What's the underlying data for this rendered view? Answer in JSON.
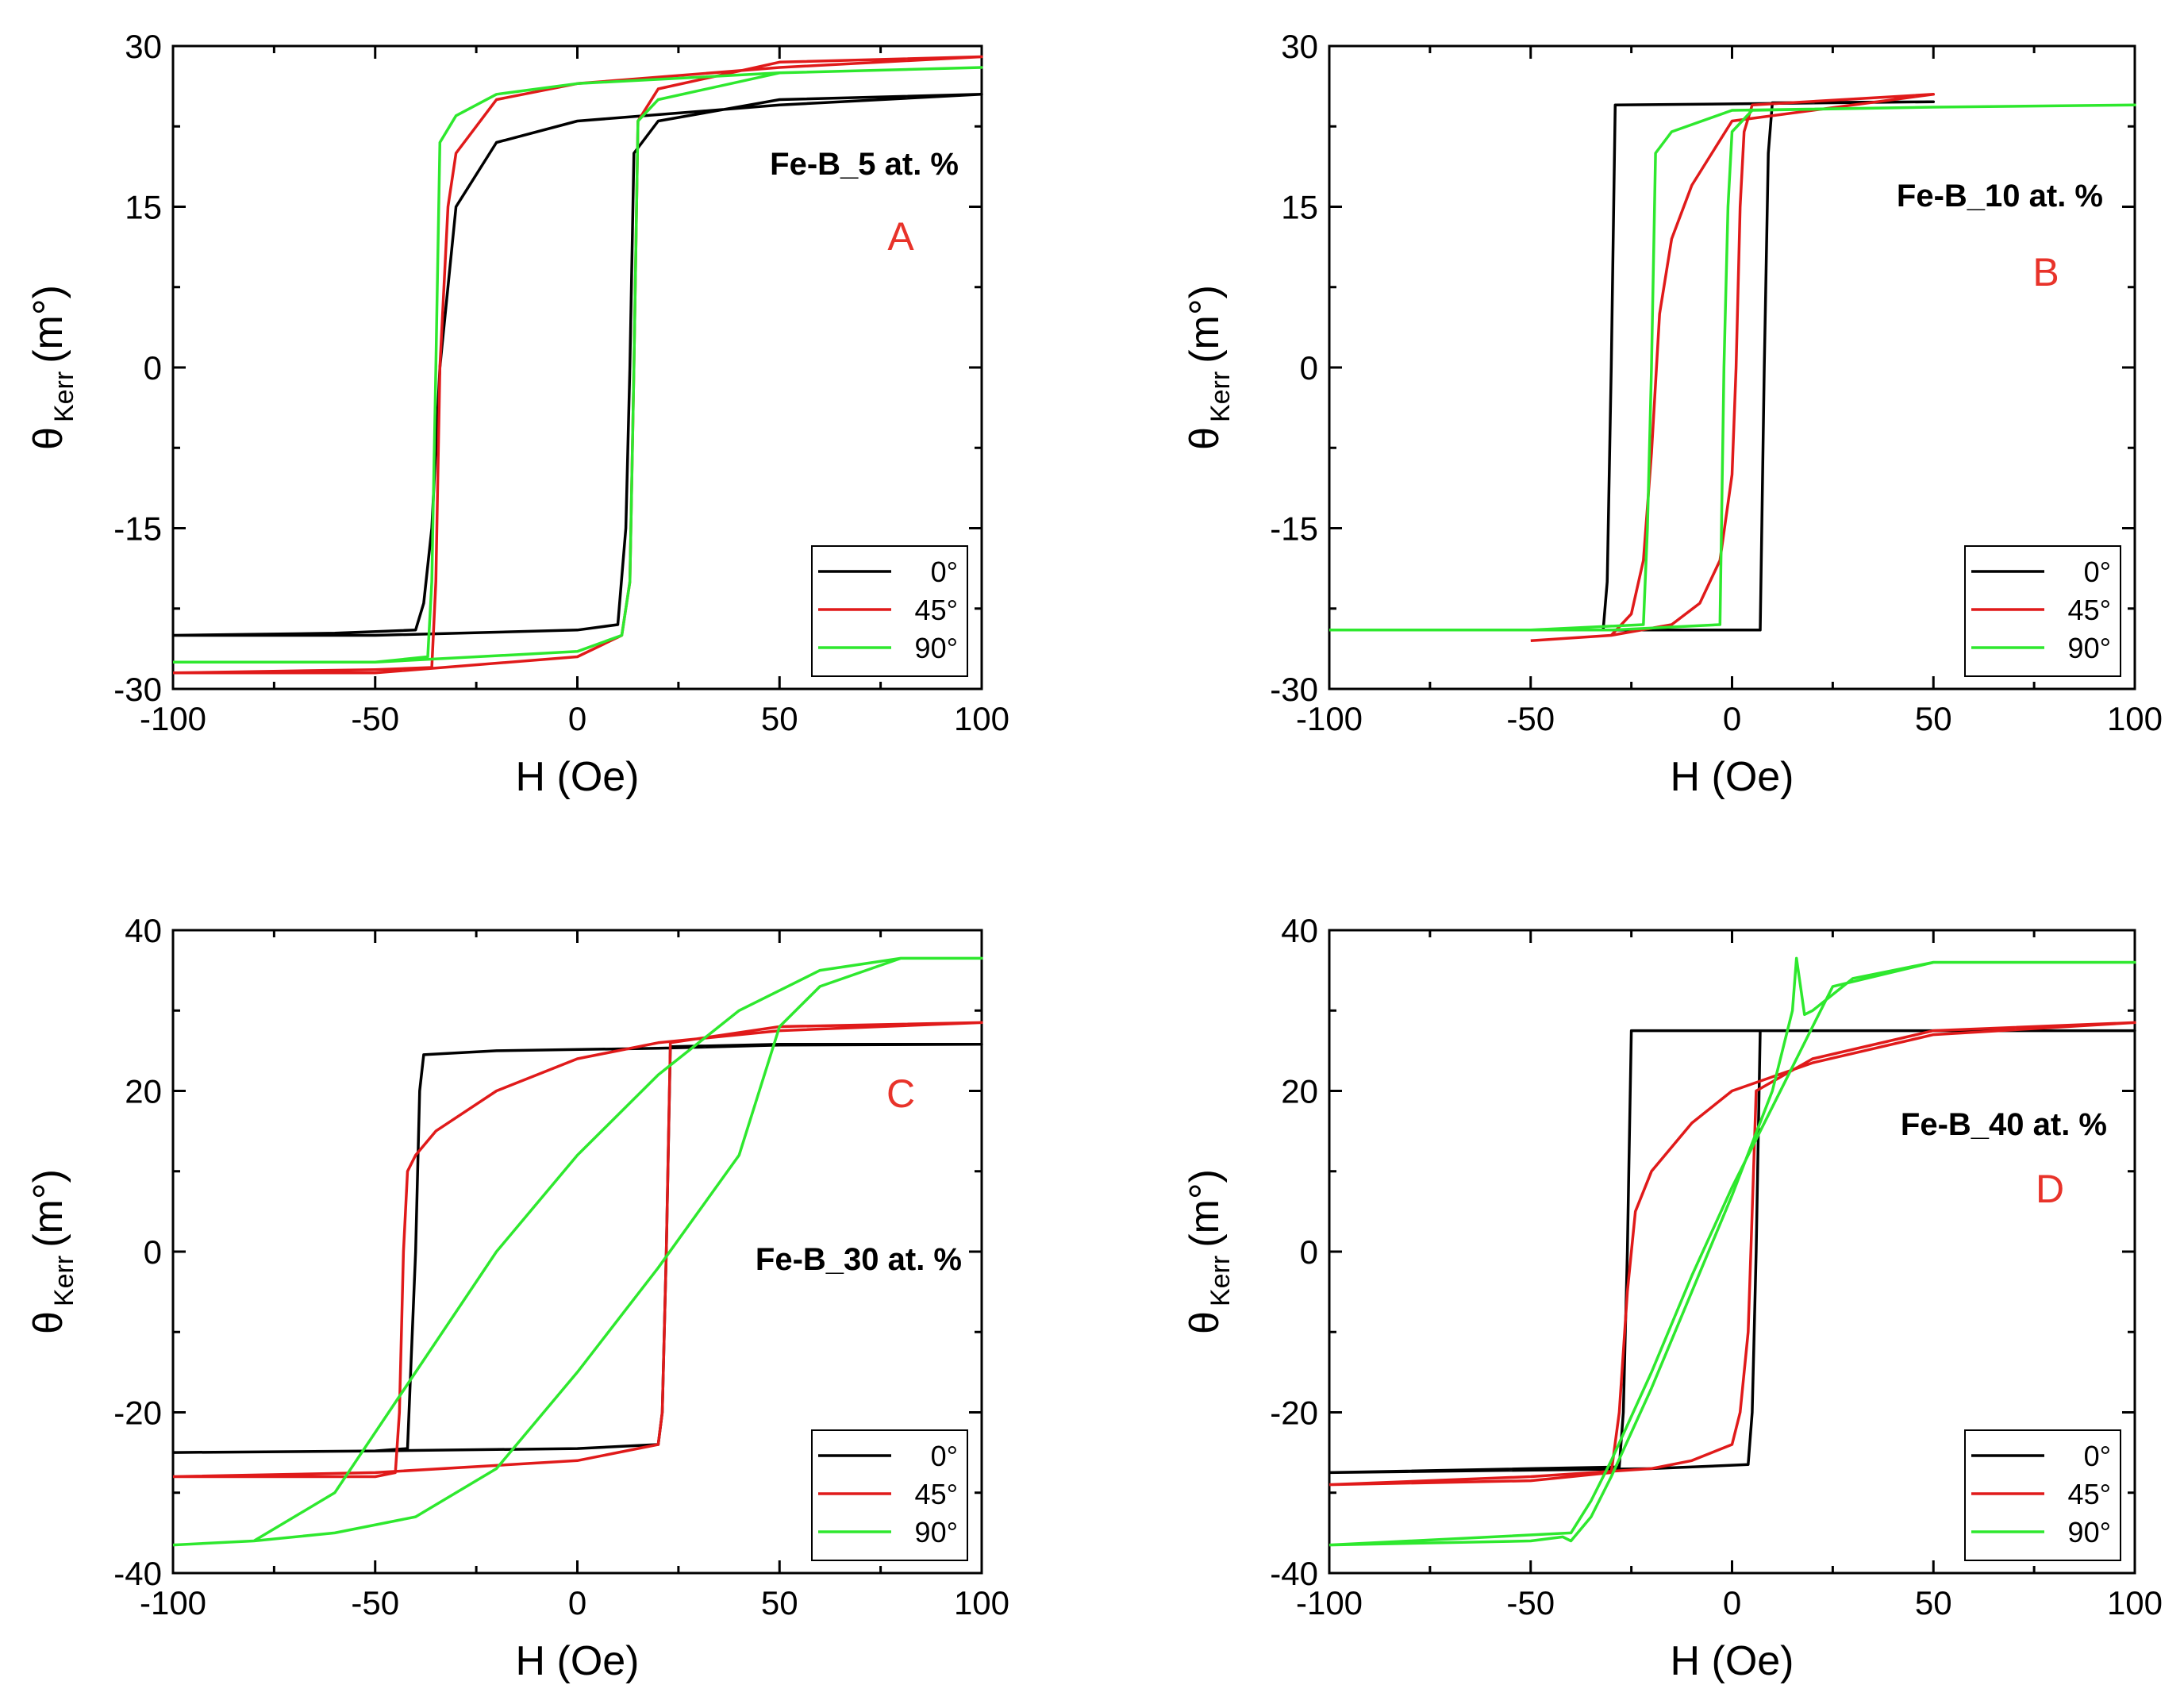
{
  "colors": {
    "0deg": "#000000",
    "45deg": "#e01a1a",
    "90deg": "#2ee82e",
    "letter": "#e8332a"
  },
  "chart_data": [
    {
      "type": "line",
      "panel": "A",
      "annotation": "Fe-B_5 at. %",
      "xlabel": "H (Oe)",
      "ylabel": "θ",
      "ylabel_sub": "Kerr",
      "ylabel_unit": "(m°)",
      "xlim": [
        -100,
        100
      ],
      "ylim": [
        -30,
        30
      ],
      "xticks": [
        -100,
        -50,
        0,
        50,
        100
      ],
      "yticks": [
        -30,
        -15,
        0,
        15,
        30
      ],
      "legend_position": "bottom-right",
      "series": [
        {
          "name": "0°",
          "color_key": "0deg",
          "x": [
            -100,
            -60,
            -40,
            -38,
            -36,
            -34,
            -30,
            -20,
            0,
            50,
            100,
            100,
            50,
            20,
            14,
            13,
            12,
            10,
            0,
            -50,
            -100
          ],
          "y": [
            -25,
            -24.8,
            -24.5,
            -22,
            -15,
            0,
            15,
            21,
            23,
            24.5,
            25.5,
            25.5,
            25,
            23,
            20,
            0,
            -15,
            -24,
            -24.5,
            -25,
            -25
          ]
        },
        {
          "name": "45°",
          "color_key": "45deg",
          "x": [
            -100,
            -50,
            -36,
            -35,
            -34,
            -32,
            -30,
            -20,
            0,
            50,
            100,
            100,
            50,
            20,
            15,
            14,
            13,
            11,
            0,
            -50,
            -100
          ],
          "y": [
            -28.5,
            -28.2,
            -28,
            -20,
            0,
            15,
            20,
            25,
            26.5,
            28,
            29,
            29,
            28.5,
            26,
            23,
            0,
            -20,
            -25,
            -27,
            -28.5,
            -28.5
          ]
        },
        {
          "name": "90°",
          "color_key": "90deg",
          "x": [
            -100,
            -50,
            -37,
            -36,
            -35,
            -34,
            -30,
            -20,
            0,
            50,
            100,
            100,
            50,
            20,
            15,
            14,
            13,
            11,
            0,
            -50,
            -100
          ],
          "y": [
            -27.5,
            -27.5,
            -27,
            -20,
            0,
            21,
            23.5,
            25.5,
            26.5,
            27.5,
            28,
            28,
            27.5,
            25,
            23,
            0,
            -20,
            -25,
            -26.5,
            -27.5,
            -27.5
          ]
        }
      ]
    },
    {
      "type": "line",
      "panel": "B",
      "annotation": "Fe-B_10 at. %",
      "xlabel": "H (Oe)",
      "ylabel": "θ",
      "ylabel_sub": "Kerr",
      "ylabel_unit": "(m°)",
      "xlim": [
        -100,
        100
      ],
      "ylim": [
        -30,
        30
      ],
      "xticks": [
        -100,
        -50,
        0,
        50,
        100
      ],
      "yticks": [
        -30,
        -15,
        0,
        15,
        30
      ],
      "legend_position": "bottom-right",
      "series": [
        {
          "name": "0°",
          "color_key": "0deg",
          "x": [
            -50,
            -32,
            -31,
            -30,
            -29,
            0,
            50,
            50,
            10,
            9,
            8,
            7,
            -20,
            -50
          ],
          "y": [
            -24.5,
            -24.5,
            -20,
            0,
            24.5,
            24.6,
            24.8,
            24.8,
            24.7,
            20,
            0,
            -24.5,
            -24.5,
            -24.5
          ]
        },
        {
          "name": "45°",
          "color_key": "45deg",
          "x": [
            -50,
            -30,
            -25,
            -22,
            -20,
            -18,
            -15,
            -10,
            -5,
            0,
            50,
            50,
            5,
            3,
            2,
            1,
            0,
            -3,
            -8,
            -15,
            -30,
            -50
          ],
          "y": [
            -25.5,
            -25,
            -23,
            -18,
            -8,
            5,
            12,
            17,
            20,
            23,
            25.5,
            25.5,
            24.5,
            22,
            15,
            0,
            -10,
            -18,
            -22,
            -24,
            -25,
            -25.5
          ]
        },
        {
          "name": "90°",
          "color_key": "90deg",
          "x": [
            -100,
            -50,
            -22,
            -21,
            -20,
            -19,
            -15,
            0,
            50,
            100,
            100,
            50,
            5,
            0,
            -1,
            -2,
            -3,
            -30,
            -100
          ],
          "y": [
            -24.5,
            -24.5,
            -24,
            -15,
            0,
            20,
            22,
            24,
            24.3,
            24.5,
            24.5,
            24.3,
            24,
            22,
            15,
            0,
            -24,
            -24.5,
            -24.5
          ]
        }
      ]
    },
    {
      "type": "line",
      "panel": "C",
      "annotation": "Fe-B_30 at. %",
      "xlabel": "H (Oe)",
      "ylabel": "θ",
      "ylabel_sub": "Kerr",
      "ylabel_unit": "(m°)",
      "xlim": [
        -100,
        100
      ],
      "ylim": [
        -40,
        40
      ],
      "xticks": [
        -100,
        -50,
        0,
        50,
        100
      ],
      "yticks": [
        -40,
        -20,
        0,
        20,
        40
      ],
      "legend_position": "bottom-right",
      "series": [
        {
          "name": "0°",
          "color_key": "0deg",
          "x": [
            -100,
            -50,
            -42,
            -40,
            -39,
            -38,
            -20,
            20,
            50,
            100,
            100,
            50,
            23,
            22,
            21,
            20,
            0,
            -50,
            -100
          ],
          "y": [
            -25,
            -24.8,
            -24.5,
            0,
            20,
            24.5,
            25,
            25.3,
            25.7,
            25.8,
            25.8,
            25.8,
            25.5,
            0,
            -20,
            -24,
            -24.5,
            -24.8,
            -25
          ]
        },
        {
          "name": "45°",
          "color_key": "45deg",
          "x": [
            -100,
            -50,
            -45,
            -44,
            -43,
            -42,
            -40,
            -35,
            -20,
            0,
            20,
            50,
            100,
            100,
            50,
            23,
            22,
            21,
            20,
            0,
            -50,
            -100
          ],
          "y": [
            -28,
            -28,
            -27.5,
            -20,
            0,
            10,
            12,
            15,
            20,
            24,
            26,
            27.5,
            28.5,
            28.5,
            28,
            26,
            0,
            -20,
            -24,
            -26,
            -27.5,
            -28
          ]
        },
        {
          "name": "90°",
          "color_key": "90deg",
          "x": [
            -100,
            -80,
            -60,
            -40,
            -20,
            0,
            20,
            40,
            60,
            80,
            100,
            100,
            80,
            60,
            50,
            45,
            40,
            20,
            0,
            -20,
            -40,
            -60,
            -80,
            -100
          ],
          "y": [
            -36.5,
            -36,
            -30,
            -15,
            0,
            12,
            22,
            30,
            35,
            36.5,
            36.5,
            36.5,
            36.5,
            33,
            28,
            20,
            12,
            -2,
            -15,
            -27,
            -33,
            -35,
            -36,
            -36.5
          ]
        }
      ]
    },
    {
      "type": "line",
      "panel": "D",
      "annotation": "Fe-B_40 at. %",
      "xlabel": "H (Oe)",
      "ylabel": "θ",
      "ylabel_sub": "Kerr",
      "ylabel_unit": "(m°)",
      "xlim": [
        -100,
        100
      ],
      "ylim": [
        -40,
        40
      ],
      "xticks": [
        -100,
        -50,
        0,
        50,
        100
      ],
      "yticks": [
        -40,
        -20,
        0,
        20,
        40
      ],
      "legend_position": "bottom-right",
      "series": [
        {
          "name": "0°",
          "color_key": "0deg",
          "x": [
            -100,
            -50,
            -28,
            -27,
            -26,
            -25,
            0,
            50,
            100,
            100,
            50,
            7,
            6,
            5,
            4,
            -20,
            -100
          ],
          "y": [
            -27.5,
            -27,
            -26.8,
            -20,
            0,
            27.5,
            27.5,
            27.5,
            27.5,
            27.5,
            27.5,
            27.5,
            0,
            -20,
            -26.5,
            -27,
            -27.5
          ]
        },
        {
          "name": "45°",
          "color_key": "45deg",
          "x": [
            -100,
            -50,
            -30,
            -28,
            -26,
            -24,
            -20,
            -10,
            0,
            20,
            50,
            100,
            100,
            50,
            20,
            6,
            5,
            4,
            2,
            0,
            -10,
            -20,
            -50,
            -100
          ],
          "y": [
            -29,
            -28.5,
            -27.5,
            -20,
            -5,
            5,
            10,
            16,
            20,
            23.5,
            27,
            28.5,
            28.5,
            27.5,
            24,
            20,
            5,
            -10,
            -20,
            -24,
            -26,
            -27,
            -28,
            -29
          ]
        },
        {
          "name": "90°",
          "color_key": "90deg",
          "x": [
            -100,
            -50,
            -42,
            -40,
            -35,
            -30,
            -20,
            -10,
            0,
            10,
            15,
            16,
            17,
            18,
            20,
            30,
            50,
            100,
            100,
            50,
            25,
            20,
            10,
            0,
            -10,
            -20,
            -30,
            -35,
            -40,
            -100
          ],
          "y": [
            -36.5,
            -36,
            -35.5,
            -36,
            -33,
            -28,
            -17,
            -5,
            7,
            20,
            30,
            36.5,
            33,
            29.5,
            30,
            34,
            36,
            36,
            36,
            36,
            33,
            28,
            18,
            8,
            -3,
            -15,
            -26,
            -31,
            -35,
            -36.5
          ]
        }
      ]
    }
  ]
}
